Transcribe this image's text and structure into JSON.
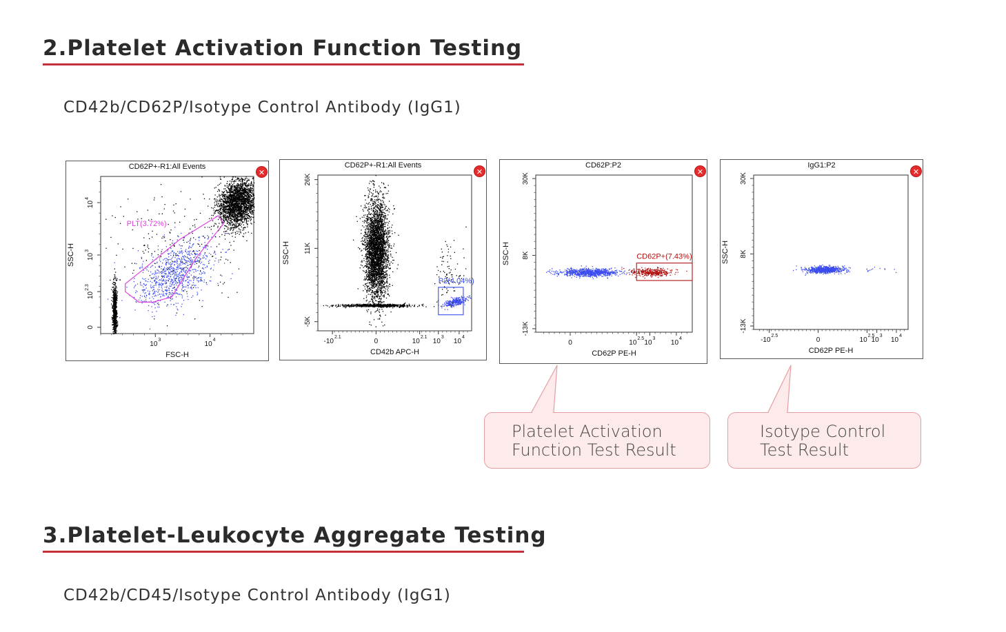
{
  "section2": {
    "title": "2.Platelet Activation Function Testing",
    "subtitle": "CD42b/CD62P/Isotype Control Antibody (IgG1)"
  },
  "section3": {
    "title": "3.Platelet-Leukocyte Aggregate Testing",
    "subtitle": "CD42b/CD45/Isotype Control Antibody (IgG1)"
  },
  "callouts": {
    "activation": {
      "line1": "Platelet Activation",
      "line2": "Function Test Result"
    },
    "isotype": {
      "line1": "Isotype Control",
      "line2": "Test Result"
    }
  },
  "colors": {
    "accent": "#c62f3a",
    "gate_magenta": "#e040e0",
    "blue_events": "#3b4bef",
    "red_events": "#b01010",
    "black_events": "#000000",
    "callout_bg": "#fdeaea"
  },
  "chart_data": [
    {
      "type": "scatter",
      "title": "CD62P+-R1:All Events",
      "xlabel": "FSC-H",
      "ylabel": "SSC-H",
      "x_scale": "log",
      "y_scale": "log",
      "xticks": [
        {
          "base": "10",
          "exp": "3",
          "value": 1000
        },
        {
          "base": "10",
          "exp": "4",
          "value": 10000
        }
      ],
      "yticks": [
        {
          "base": "0",
          "exp": "",
          "value": 0
        },
        {
          "base": "10",
          "exp": "2.3",
          "value": 200
        },
        {
          "base": "10",
          "exp": "3",
          "value": 1000
        },
        {
          "base": "10",
          "exp": "4",
          "value": 10000
        }
      ],
      "xlim_log10": [
        2.0,
        4.8
      ],
      "ylim_log10": [
        1.5,
        4.5
      ],
      "gates": [
        {
          "name": "PLT",
          "label": "PLT(3.72%)",
          "percent": 3.72,
          "shape": "polygon",
          "color": "#e040e0",
          "vertices_log10": [
            [
              2.45,
              2.3
            ],
            [
              2.7,
              2.1
            ],
            [
              2.95,
              2.1
            ],
            [
              3.3,
              2.2
            ],
            [
              3.75,
              2.95
            ],
            [
              4.25,
              3.6
            ],
            [
              4.15,
              3.75
            ],
            [
              3.45,
              3.3
            ],
            [
              2.75,
              2.7
            ],
            [
              2.45,
              2.45
            ]
          ]
        }
      ],
      "populations": [
        {
          "name": "platelets",
          "color": "#3b4bef",
          "center_log10": [
            3.35,
            2.65
          ],
          "spread_log10": [
            0.35,
            0.28
          ],
          "count": 900,
          "tilt": 0.6
        },
        {
          "name": "cells",
          "color": "#000000",
          "center_log10": [
            4.5,
            4.0
          ],
          "spread_log10": [
            0.18,
            0.22
          ],
          "count": 2600,
          "tilt": 0.2
        },
        {
          "name": "noise-column",
          "color": "#000000",
          "center_log10": [
            2.25,
            1.95
          ],
          "spread_log10": [
            0.02,
            0.28
          ],
          "count": 700,
          "tilt": 0
        },
        {
          "name": "background",
          "color": "#000000",
          "center_log10": [
            3.4,
            3.1
          ],
          "spread_log10": [
            0.6,
            0.55
          ],
          "count": 220,
          "tilt": 0
        }
      ]
    },
    {
      "type": "scatter",
      "title": "CD62P+-R1:All Events",
      "xlabel": "CD42b APC-H",
      "ylabel": "SSC-H",
      "x_scale": "biexponential",
      "y_scale": "linear",
      "xticks": [
        {
          "base": "-10",
          "exp": "2.1",
          "value": -2.1
        },
        {
          "base": "0",
          "exp": "",
          "value": 0
        },
        {
          "base": "10",
          "exp": "2.1",
          "value": 2.1
        },
        {
          "base": "10",
          "exp": "3",
          "value": 3
        },
        {
          "base": "10",
          "exp": "4",
          "value": 4
        }
      ],
      "yticks": [
        {
          "label": "-5K",
          "value": -5
        },
        {
          "label": "11K",
          "value": 11
        },
        {
          "label": "26K",
          "value": 26
        }
      ],
      "xlim": [
        -2.8,
        4.6
      ],
      "ylim": [
        -7,
        27
      ],
      "gates": [
        {
          "name": "P2",
          "label": "P2(4.04%)",
          "percent": 4.04,
          "shape": "rectangle",
          "color": "#3b4bef",
          "x_range": [
            3.0,
            4.2
          ],
          "y_range": [
            -3.5,
            2.5
          ]
        }
      ],
      "populations": [
        {
          "name": "main",
          "color": "#000000",
          "center": [
            0.0,
            10.5
          ],
          "spread": [
            0.28,
            5.5
          ],
          "count": 3500,
          "tilt": 0
        },
        {
          "name": "baseline",
          "color": "#000000",
          "center": [
            0.0,
            -1.4
          ],
          "spread": [
            0.9,
            0.15
          ],
          "count": 700,
          "tilt": 0
        },
        {
          "name": "p2-events",
          "color": "#3b4bef",
          "center": [
            3.8,
            -0.6
          ],
          "spread": [
            0.28,
            0.45
          ],
          "count": 260,
          "tilt": 0.6
        },
        {
          "name": "sparse",
          "color": "#000000",
          "center": [
            3.5,
            5.5
          ],
          "spread": [
            0.35,
            3.5
          ],
          "count": 90,
          "tilt": 0
        }
      ]
    },
    {
      "type": "scatter",
      "title": "CD62P:P2",
      "xlabel": "CD62P PE-H",
      "ylabel": "SSC-H",
      "x_scale": "biexponential",
      "y_scale": "linear",
      "xticks": [
        {
          "base": "0",
          "exp": "",
          "value": 0
        },
        {
          "base": "10",
          "exp": "2.5",
          "value": 2.5
        },
        {
          "base": "10",
          "exp": "3",
          "value": 3
        },
        {
          "base": "10",
          "exp": "4",
          "value": 4
        }
      ],
      "yticks": [
        {
          "label": "-13K",
          "value": -13
        },
        {
          "label": "8K",
          "value": 8
        },
        {
          "label": "30K",
          "value": 30
        }
      ],
      "xlim": [
        -1.3,
        4.6
      ],
      "ylim": [
        -14,
        31
      ],
      "gates": [
        {
          "name": "CD62P+",
          "label": "CD62P+(7.43%)",
          "percent": 7.43,
          "shape": "rectangle",
          "color": "#b01010",
          "x_range": [
            2.5,
            4.6
          ],
          "y_range": [
            0.8,
            5.8
          ]
        }
      ],
      "populations": [
        {
          "name": "negative",
          "color": "#3b4bef",
          "center": [
            0.7,
            3.2
          ],
          "spread": [
            0.55,
            0.55
          ],
          "count": 800,
          "tilt": 0
        },
        {
          "name": "positive",
          "color": "#b01010",
          "center": [
            3.05,
            3.2
          ],
          "spread": [
            0.4,
            0.55
          ],
          "count": 360,
          "tilt": 0
        }
      ]
    },
    {
      "type": "scatter",
      "title": "IgG1:P2",
      "xlabel": "CD62P PE-H",
      "ylabel": "SSC-H",
      "x_scale": "biexponential",
      "y_scale": "linear",
      "xticks": [
        {
          "base": "-10",
          "exp": "2.5",
          "value": -2.5
        },
        {
          "base": "0",
          "exp": "",
          "value": 0
        },
        {
          "base": "10",
          "exp": "2.5",
          "value": 2.5
        },
        {
          "base": "10",
          "exp": "3",
          "value": 3
        },
        {
          "base": "10",
          "exp": "4",
          "value": 4
        }
      ],
      "yticks": [
        {
          "label": "-13K",
          "value": -13
        },
        {
          "label": "8K",
          "value": 8
        },
        {
          "label": "30K",
          "value": 30
        }
      ],
      "xlim": [
        -3.3,
        4.6
      ],
      "ylim": [
        -14,
        31
      ],
      "gates": [],
      "populations": [
        {
          "name": "isotype",
          "color": "#3b4bef",
          "center": [
            0.3,
            3.5
          ],
          "spread": [
            0.5,
            0.5
          ],
          "count": 700,
          "tilt": 0
        },
        {
          "name": "sparse",
          "color": "#3b4bef",
          "center": [
            2.8,
            3.5
          ],
          "spread": [
            0.6,
            0.4
          ],
          "count": 14,
          "tilt": 0
        }
      ]
    }
  ]
}
